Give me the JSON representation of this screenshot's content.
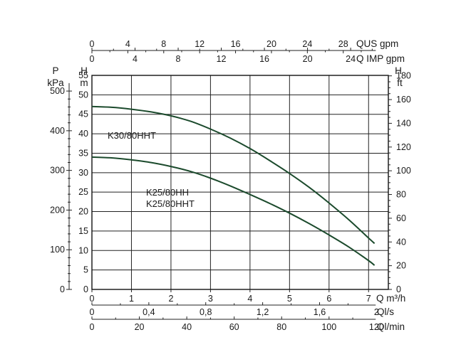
{
  "chart_data": {
    "type": "line",
    "x": {
      "label": "Q m³/h",
      "range": [
        0,
        7.5
      ],
      "ticks": [
        "0",
        "1",
        "2",
        "3",
        "4",
        "5",
        "6",
        "7"
      ]
    },
    "y_left_head": {
      "label_top": "H",
      "label_unit": "m",
      "range": [
        0,
        55
      ],
      "ticks": [
        "0",
        "5",
        "10",
        "15",
        "20",
        "25",
        "30",
        "35",
        "40",
        "45",
        "50",
        "55"
      ]
    },
    "y_left_pressure": {
      "label_top": "P",
      "label_unit": "kPa",
      "range_kpa": [
        0,
        539.55
      ],
      "ticks": [
        "0",
        "100",
        "200",
        "300",
        "400",
        "500"
      ]
    },
    "y_right_head_ft": {
      "label_top": "H",
      "label_unit": "ft",
      "range_ft": [
        0,
        180.4
      ],
      "ticks": [
        "0",
        "20",
        "40",
        "60",
        "80",
        "100",
        "120",
        "140",
        "160",
        "180"
      ]
    },
    "top_axes": [
      {
        "label": "QUS gpm",
        "ticks": [
          "0",
          "4",
          "8",
          "12",
          "16",
          "20",
          "24",
          "28"
        ],
        "step": 4,
        "minor_step": 2,
        "per_m3h": 4.4029
      },
      {
        "label": "Q IMP gpm",
        "ticks": [
          "0",
          "4",
          "8",
          "12",
          "16",
          "20",
          "24"
        ],
        "step": 4,
        "minor_step": 2,
        "per_m3h": 3.6662
      }
    ],
    "bottom_axes": [
      {
        "label": "Ql/s",
        "ticks": [
          "0",
          "0,4",
          "0,8",
          "1,2",
          "1,6",
          "2"
        ],
        "step": 0.4,
        "minor_step": 0.2,
        "per_m3h": 0.27778
      },
      {
        "label": "Ql/min",
        "ticks": [
          "0",
          "20",
          "40",
          "60",
          "80",
          "100",
          "120"
        ],
        "step": 20,
        "minor_step": 10,
        "per_m3h": 16.6667
      }
    ],
    "series": [
      {
        "name": "K30/80HHT",
        "x": [
          0,
          0.5,
          1,
          1.5,
          2,
          2.5,
          3,
          3.5,
          4,
          4.5,
          5,
          5.5,
          6,
          6.5,
          7,
          7.15
        ],
        "y": [
          47,
          46.8,
          46.3,
          45.6,
          44.6,
          43.2,
          41.2,
          38.9,
          36.2,
          33.1,
          29.8,
          26.2,
          22.2,
          17.9,
          13.2,
          11.8
        ]
      },
      {
        "name": "K25/80HH\nK25/80HHT",
        "x": [
          0,
          0.5,
          1,
          1.5,
          2,
          2.5,
          3,
          3.5,
          4,
          4.5,
          5,
          5.5,
          6,
          6.5,
          7,
          7.15
        ],
        "y": [
          34,
          33.8,
          33.3,
          32.6,
          31.6,
          30.3,
          28.6,
          26.6,
          24.4,
          22.1,
          19.6,
          16.9,
          14.0,
          10.9,
          7.4,
          6.2
        ]
      }
    ],
    "grid": true
  }
}
